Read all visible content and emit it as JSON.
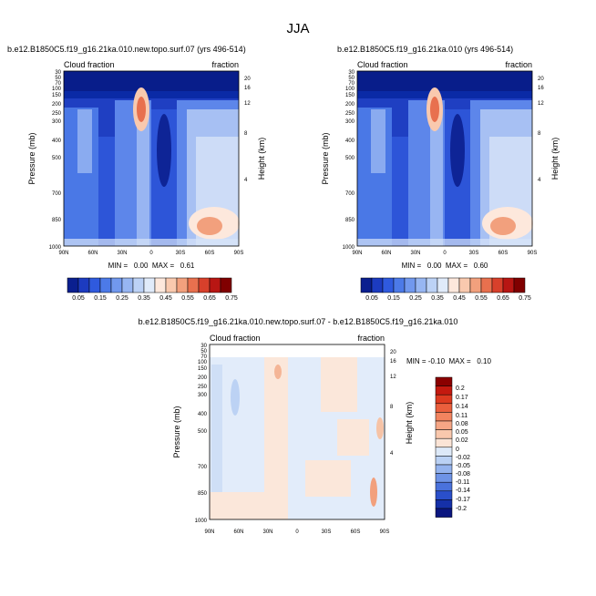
{
  "figure_title": "JJA",
  "chart_data": [
    {
      "type": "heatmap",
      "title": "b.e12.B1850C5.f19_g16.21ka.010.new.topo.surf.07 (yrs 496-514)",
      "subtitle_left": "Cloud fraction",
      "subtitle_right": "fraction",
      "xlabel": "",
      "ylabel": "Pressure (mb)",
      "y2label": "Height (km)",
      "x_ticks": [
        "90N",
        "60N",
        "30N",
        "0",
        "30S",
        "60S",
        "90S"
      ],
      "y_ticks": [
        "30",
        "50",
        "70",
        "100",
        "150",
        "200",
        "250",
        "300",
        "400",
        "500",
        "700",
        "850",
        "1000"
      ],
      "y2_ticks": [
        "20",
        "16",
        "12",
        "8",
        "4"
      ],
      "stats": "MIN =   0.00  MAX =   0.61",
      "colorbar_labels": [
        "0.05",
        "0.15",
        "0.25",
        "0.35",
        "0.45",
        "0.55",
        "0.65",
        "0.75"
      ],
      "colorbar_colors": [
        "#0a1f8f",
        "#1c3bc0",
        "#2f5ade",
        "#4c7ae8",
        "#7198ee",
        "#97b6f2",
        "#bcd2f6",
        "#e0ebfa",
        "#fde8dc",
        "#f9c9ae",
        "#f2a07d",
        "#e8704e",
        "#d8402b",
        "#b81613",
        "#800000"
      ]
    },
    {
      "type": "heatmap",
      "title": "b.e12.B1850C5.f19_g16.21ka.010 (yrs 496-514)",
      "subtitle_left": "Cloud fraction",
      "subtitle_right": "fraction",
      "xlabel": "",
      "ylabel": "Pressure (mb)",
      "y2label": "Height (km)",
      "x_ticks": [
        "90N",
        "60N",
        "30N",
        "0",
        "30S",
        "60S",
        "90S"
      ],
      "y_ticks": [
        "30",
        "50",
        "70",
        "100",
        "150",
        "200",
        "250",
        "300",
        "400",
        "500",
        "700",
        "850",
        "1000"
      ],
      "y2_ticks": [
        "20",
        "16",
        "12",
        "8",
        "4"
      ],
      "stats": "MIN =   0.00  MAX =   0.60",
      "colorbar_labels": [
        "0.05",
        "0.15",
        "0.25",
        "0.35",
        "0.45",
        "0.55",
        "0.65",
        "0.75"
      ],
      "colorbar_colors": [
        "#0a1f8f",
        "#1c3bc0",
        "#2f5ade",
        "#4c7ae8",
        "#7198ee",
        "#97b6f2",
        "#bcd2f6",
        "#e0ebfa",
        "#fde8dc",
        "#f9c9ae",
        "#f2a07d",
        "#e8704e",
        "#d8402b",
        "#b81613",
        "#800000"
      ]
    },
    {
      "type": "heatmap",
      "title": "b.e12.B1850C5.f19_g16.21ka.010.new.topo.surf.07 - b.e12.B1850C5.f19_g16.21ka.010",
      "subtitle_left": "Cloud fraction",
      "subtitle_right": "fraction",
      "xlabel": "",
      "ylabel": "Pressure (mb)",
      "y2label": "Height (km)",
      "x_ticks": [
        "90N",
        "60N",
        "30N",
        "0",
        "30S",
        "60S",
        "90S"
      ],
      "y_ticks": [
        "30",
        "50",
        "70",
        "100",
        "150",
        "200",
        "250",
        "300",
        "400",
        "500",
        "700",
        "850",
        "1000"
      ],
      "y2_ticks": [
        "20",
        "16",
        "12",
        "8",
        "4"
      ],
      "stats": "MIN = -0.10  MAX =   0.10",
      "colorbar_labels": [
        "0.2",
        "0.17",
        "0.14",
        "0.11",
        "0.08",
        "0.05",
        "0.02",
        "0",
        "-0.02",
        "-0.05",
        "-0.08",
        "-0.11",
        "-0.14",
        "-0.17",
        "-0.2"
      ],
      "colorbar_colors": [
        "#8b0000",
        "#c4190f",
        "#dd3a20",
        "#ea5f3d",
        "#f2845f",
        "#f6a685",
        "#f9c8ad",
        "#fbe4d6",
        "#dde9f8",
        "#bad1f4",
        "#94b3ee",
        "#6e93e6",
        "#4a72dc",
        "#2a4fca",
        "#1530a8",
        "#0b1680"
      ]
    }
  ]
}
